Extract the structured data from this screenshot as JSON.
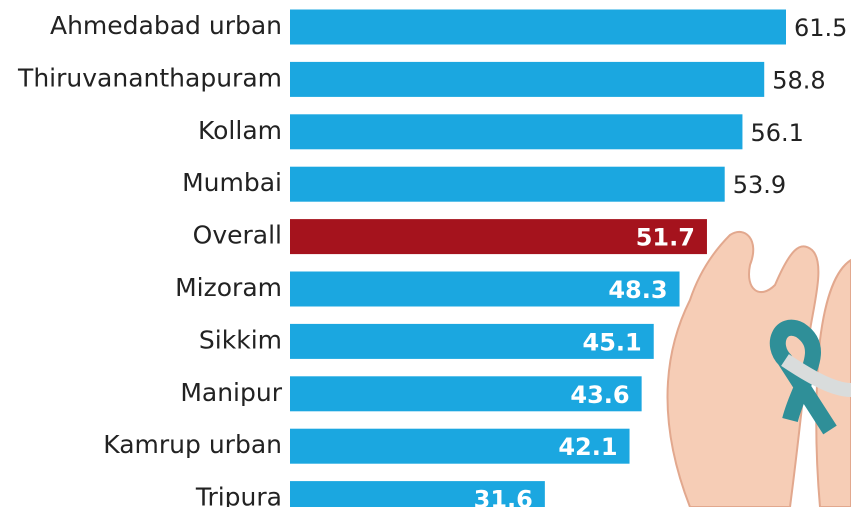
{
  "chart_data": {
    "type": "barh",
    "categories": [
      "Ahmedabad urban",
      "Thiruvananthapuram",
      "Kollam",
      "Mumbai",
      "Overall",
      "Mizoram",
      "Sikkim",
      "Manipur",
      "Kamrup urban",
      "Tripura"
    ],
    "values": [
      61.5,
      58.8,
      56.1,
      53.9,
      51.7,
      48.3,
      45.1,
      43.6,
      42.1,
      31.6
    ],
    "colors": [
      "#1ba7e0",
      "#1ba7e0",
      "#1ba7e0",
      "#1ba7e0",
      "#a5131d",
      "#1ba7e0",
      "#1ba7e0",
      "#1ba7e0",
      "#1ba7e0",
      "#1ba7e0"
    ]
  }
}
